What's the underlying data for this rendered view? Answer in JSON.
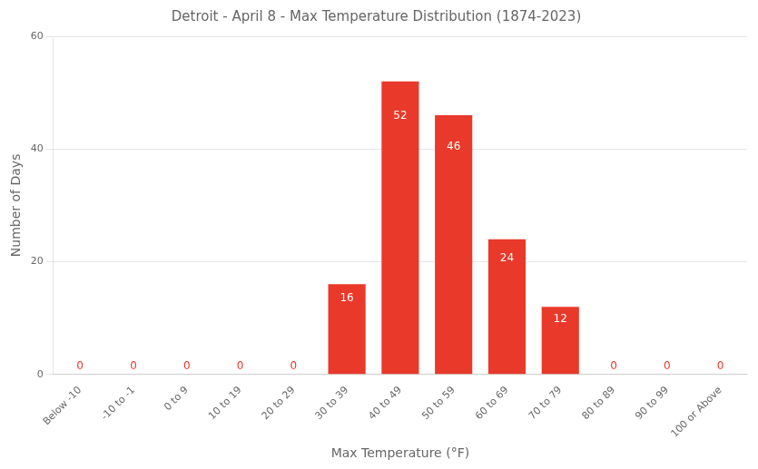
{
  "chart_data": {
    "type": "bar",
    "title": "Detroit - April 8 - Max Temperature Distribution (1874-2023)",
    "xlabel": "Max Temperature (°F)",
    "ylabel": "Number of Days",
    "categories": [
      "Below -10",
      "-10 to -1",
      "0 to 9",
      "10 to 19",
      "20 to 29",
      "30 to 39",
      "40 to 49",
      "50 to 59",
      "60 to 69",
      "70 to 79",
      "80 to 89",
      "90 to 99",
      "100 or Above"
    ],
    "values": [
      0,
      0,
      0,
      0,
      0,
      16,
      52,
      46,
      24,
      12,
      0,
      0,
      0
    ],
    "color": "#e8392a",
    "ylim": [
      0,
      60
    ],
    "yticks": [
      0,
      20,
      40,
      60
    ],
    "grid": true,
    "data_labels": true
  }
}
